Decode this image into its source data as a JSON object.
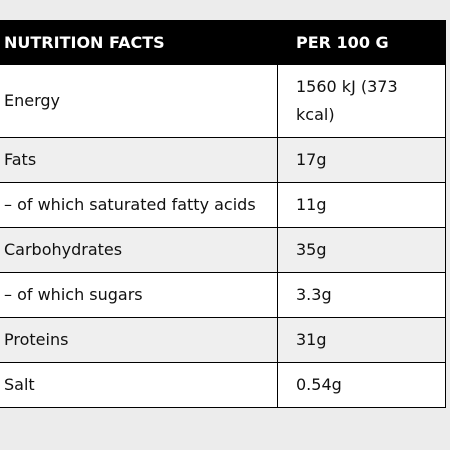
{
  "table": {
    "header": [
      "NUTRITION FACTS",
      "PER 100 G"
    ],
    "rows": [
      [
        "Energy",
        "1560 kJ (373 kcal)"
      ],
      [
        "Fats",
        "17g"
      ],
      [
        "– of which saturated fatty acids",
        "11g"
      ],
      [
        "Carbohydrates",
        "35g"
      ],
      [
        "– of which sugars",
        "3.3g"
      ],
      [
        "Proteins",
        "31g"
      ],
      [
        "Salt",
        "0.54g"
      ]
    ]
  }
}
